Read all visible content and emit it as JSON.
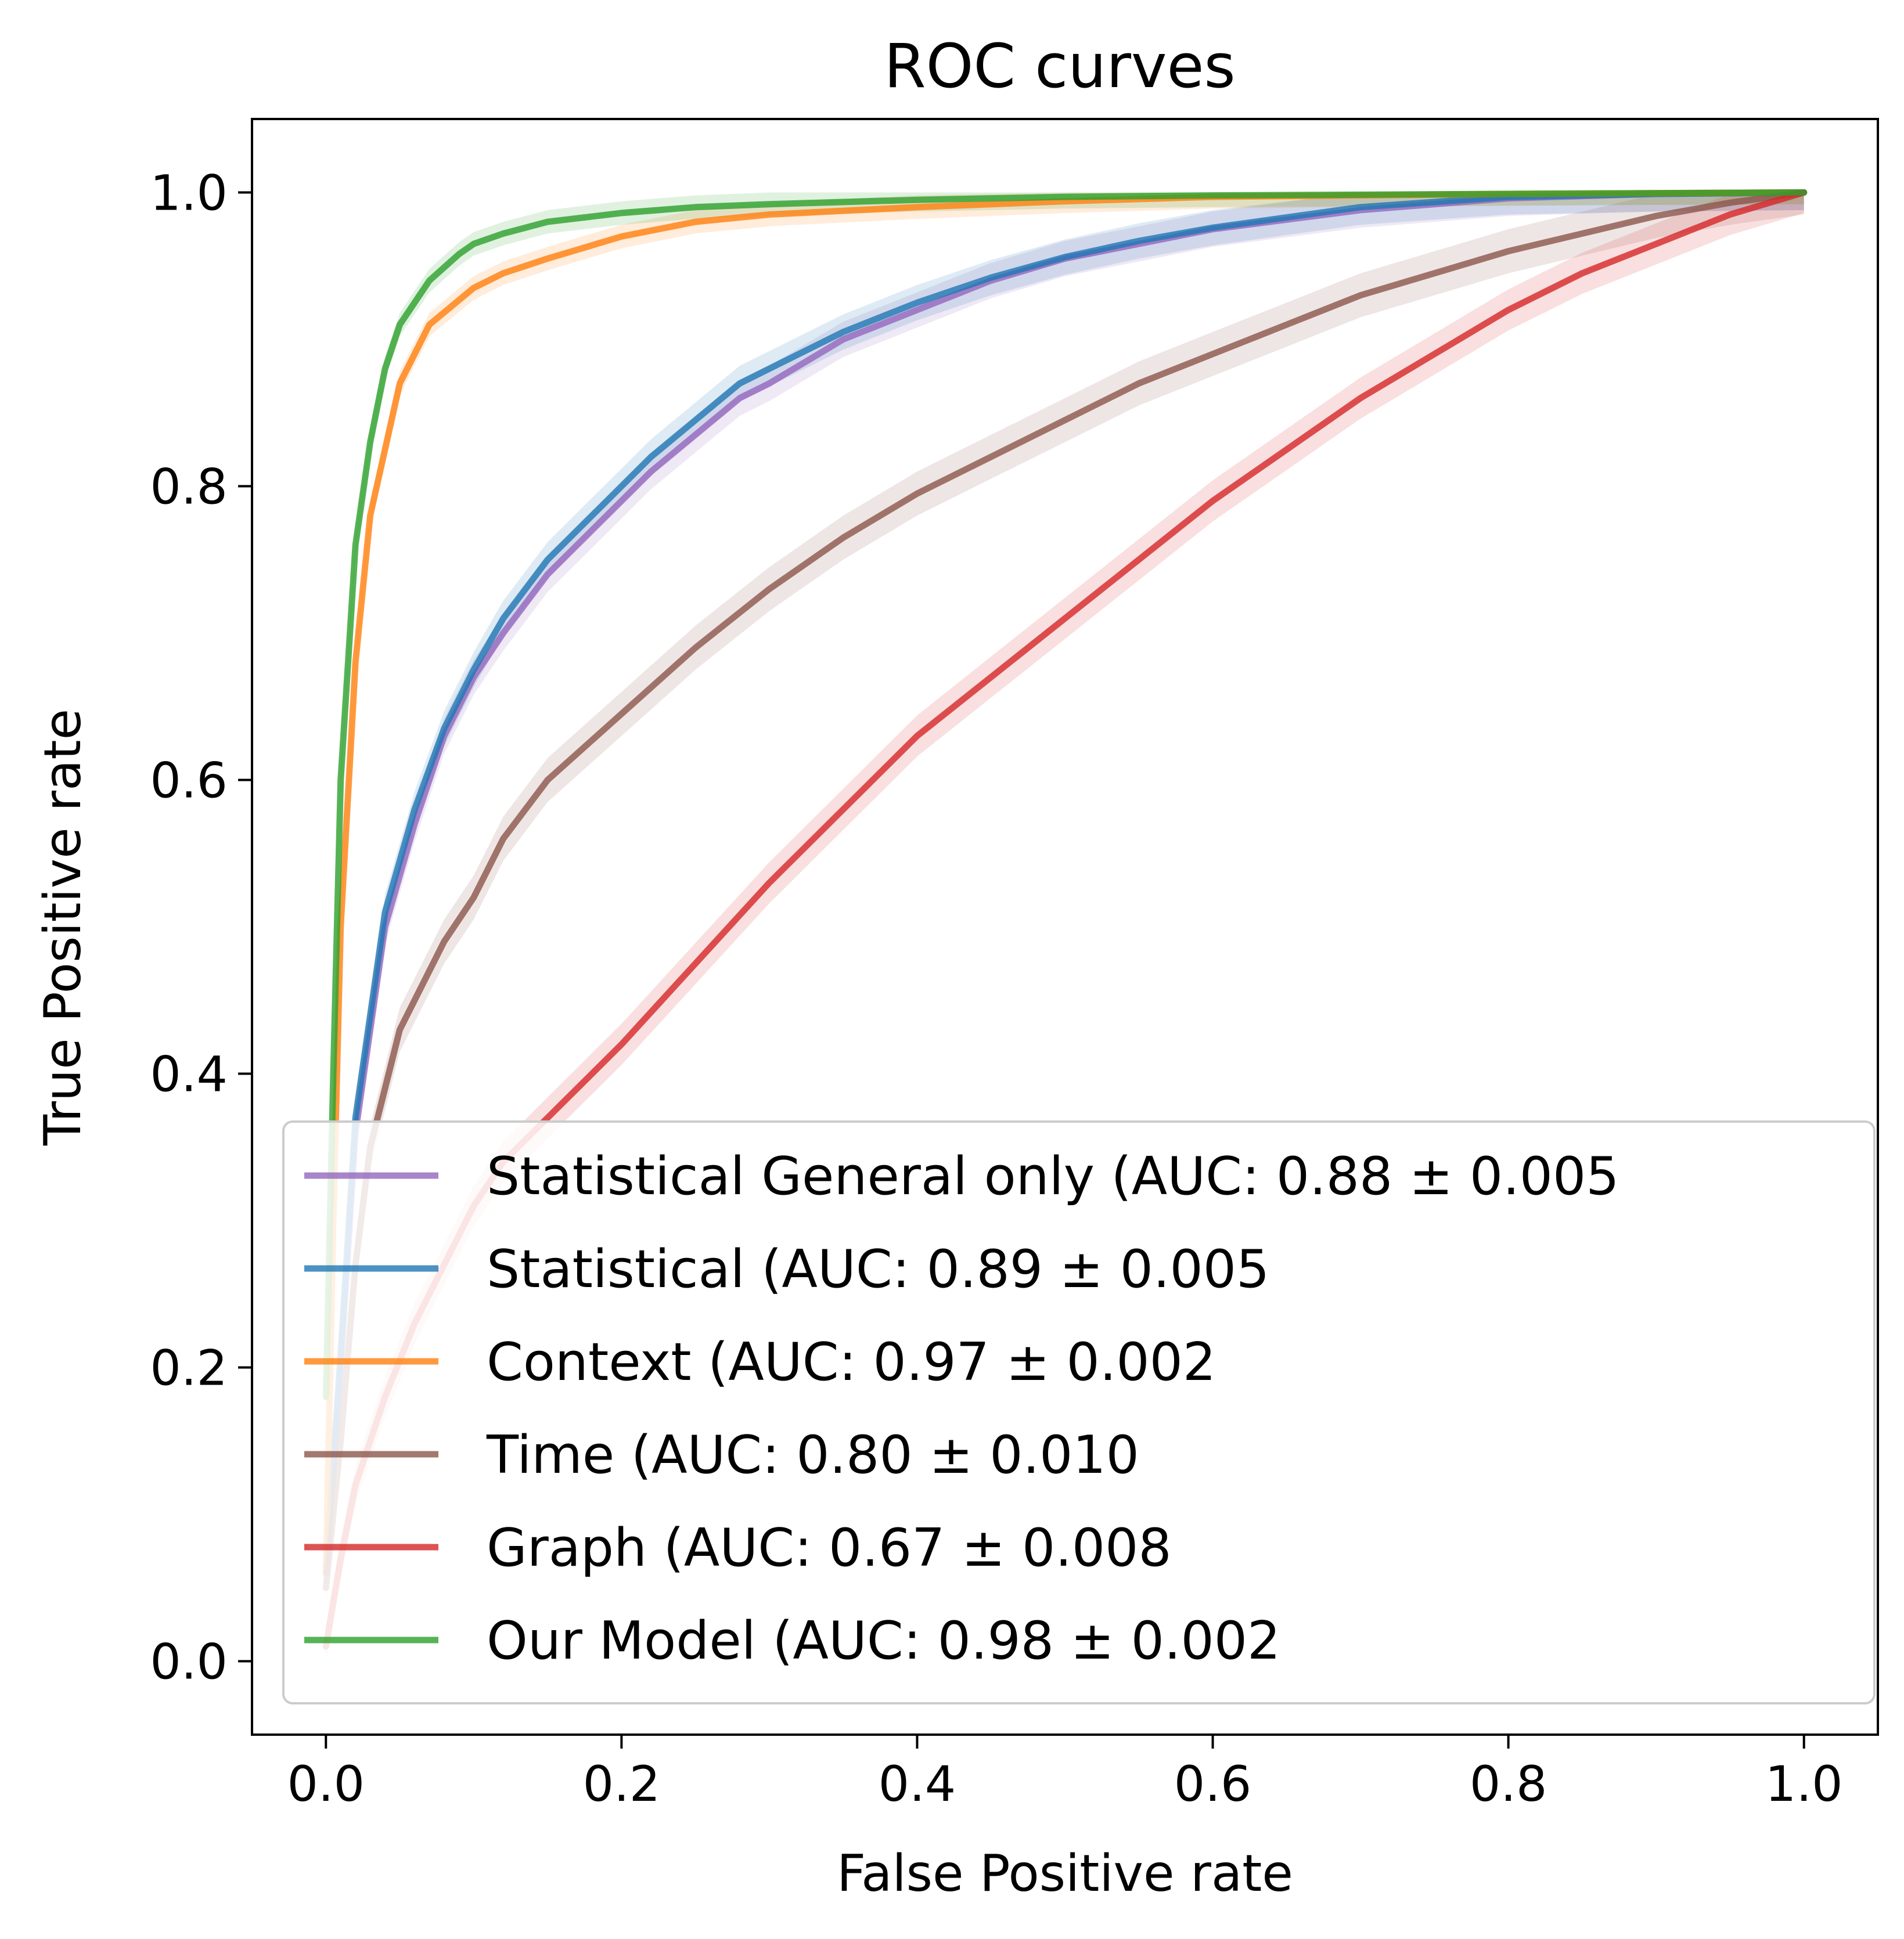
{
  "chart_data": {
    "type": "line",
    "title": "ROC curves",
    "xlabel": "False Positive rate",
    "ylabel": "True Positive rate",
    "xlim": [
      -0.05,
      1.05
    ],
    "ylim": [
      -0.05,
      1.05
    ],
    "x_ticks": [
      0.0,
      0.2,
      0.4,
      0.6,
      0.8,
      1.0
    ],
    "y_ticks": [
      0.0,
      0.2,
      0.4,
      0.6,
      0.8,
      1.0
    ],
    "x_tick_labels": [
      "0.0",
      "0.2",
      "0.4",
      "0.6",
      "0.8",
      "1.0"
    ],
    "y_tick_labels": [
      "0.0",
      "0.2",
      "0.4",
      "0.6",
      "0.8",
      "1.0"
    ],
    "grid": false,
    "legend_position": "lower-right",
    "series": [
      {
        "name": "Statistical General only (AUC: 0.88 ± 0.005",
        "color": "#9467bd",
        "band": 0.012,
        "points": [
          [
            0,
            0.06
          ],
          [
            0.01,
            0.2
          ],
          [
            0.02,
            0.36
          ],
          [
            0.04,
            0.5
          ],
          [
            0.06,
            0.57
          ],
          [
            0.08,
            0.63
          ],
          [
            0.1,
            0.67
          ],
          [
            0.12,
            0.7
          ],
          [
            0.15,
            0.74
          ],
          [
            0.18,
            0.77
          ],
          [
            0.2,
            0.79
          ],
          [
            0.22,
            0.81
          ],
          [
            0.25,
            0.835
          ],
          [
            0.28,
            0.86
          ],
          [
            0.3,
            0.87
          ],
          [
            0.35,
            0.9
          ],
          [
            0.4,
            0.92
          ],
          [
            0.45,
            0.94
          ],
          [
            0.5,
            0.955
          ],
          [
            0.55,
            0.965
          ],
          [
            0.6,
            0.975
          ],
          [
            0.7,
            0.988
          ],
          [
            0.8,
            0.996
          ],
          [
            0.9,
            0.999
          ],
          [
            1.0,
            1.0
          ]
        ]
      },
      {
        "name": "Statistical (AUC: 0.89 ± 0.005",
        "color": "#1f77b4",
        "band": 0.012,
        "points": [
          [
            0,
            0.06
          ],
          [
            0.01,
            0.21
          ],
          [
            0.02,
            0.37
          ],
          [
            0.04,
            0.51
          ],
          [
            0.06,
            0.58
          ],
          [
            0.08,
            0.635
          ],
          [
            0.1,
            0.675
          ],
          [
            0.12,
            0.71
          ],
          [
            0.15,
            0.75
          ],
          [
            0.18,
            0.78
          ],
          [
            0.2,
            0.8
          ],
          [
            0.22,
            0.82
          ],
          [
            0.25,
            0.845
          ],
          [
            0.28,
            0.87
          ],
          [
            0.3,
            0.88
          ],
          [
            0.35,
            0.905
          ],
          [
            0.4,
            0.925
          ],
          [
            0.45,
            0.942
          ],
          [
            0.5,
            0.956
          ],
          [
            0.55,
            0.967
          ],
          [
            0.6,
            0.976
          ],
          [
            0.7,
            0.99
          ],
          [
            0.8,
            0.997
          ],
          [
            0.9,
            0.999
          ],
          [
            1.0,
            1.0
          ]
        ]
      },
      {
        "name": "Context  (AUC: 0.97 ± 0.002",
        "color": "#ff7f0e",
        "band": 0.008,
        "points": [
          [
            0,
            0.06
          ],
          [
            0.005,
            0.3
          ],
          [
            0.01,
            0.5
          ],
          [
            0.02,
            0.68
          ],
          [
            0.03,
            0.78
          ],
          [
            0.05,
            0.87
          ],
          [
            0.07,
            0.91
          ],
          [
            0.1,
            0.935
          ],
          [
            0.12,
            0.945
          ],
          [
            0.15,
            0.955
          ],
          [
            0.2,
            0.97
          ],
          [
            0.25,
            0.98
          ],
          [
            0.3,
            0.985
          ],
          [
            0.4,
            0.99
          ],
          [
            0.5,
            0.994
          ],
          [
            0.6,
            0.997
          ],
          [
            0.8,
            0.999
          ],
          [
            1.0,
            1.0
          ]
        ]
      },
      {
        "name": "Time (AUC: 0.80 ± 0.010",
        "color": "#8c564b",
        "band": 0.015,
        "points": [
          [
            0,
            0.05
          ],
          [
            0.01,
            0.15
          ],
          [
            0.02,
            0.27
          ],
          [
            0.03,
            0.35
          ],
          [
            0.05,
            0.43
          ],
          [
            0.08,
            0.49
          ],
          [
            0.1,
            0.52
          ],
          [
            0.12,
            0.56
          ],
          [
            0.15,
            0.6
          ],
          [
            0.2,
            0.645
          ],
          [
            0.25,
            0.69
          ],
          [
            0.3,
            0.73
          ],
          [
            0.35,
            0.765
          ],
          [
            0.4,
            0.795
          ],
          [
            0.45,
            0.82
          ],
          [
            0.5,
            0.845
          ],
          [
            0.55,
            0.87
          ],
          [
            0.6,
            0.89
          ],
          [
            0.65,
            0.91
          ],
          [
            0.7,
            0.93
          ],
          [
            0.75,
            0.945
          ],
          [
            0.8,
            0.96
          ],
          [
            0.85,
            0.972
          ],
          [
            0.9,
            0.984
          ],
          [
            0.95,
            0.993
          ],
          [
            1.0,
            1.0
          ]
        ]
      },
      {
        "name": "Graph (AUC: 0.67 ± 0.008",
        "color": "#d62728",
        "band": 0.014,
        "points": [
          [
            0,
            0.01
          ],
          [
            0.01,
            0.07
          ],
          [
            0.02,
            0.12
          ],
          [
            0.04,
            0.18
          ],
          [
            0.06,
            0.23
          ],
          [
            0.08,
            0.27
          ],
          [
            0.1,
            0.31
          ],
          [
            0.12,
            0.34
          ],
          [
            0.15,
            0.37
          ],
          [
            0.2,
            0.42
          ],
          [
            0.25,
            0.475
          ],
          [
            0.3,
            0.53
          ],
          [
            0.35,
            0.58
          ],
          [
            0.4,
            0.63
          ],
          [
            0.45,
            0.67
          ],
          [
            0.5,
            0.71
          ],
          [
            0.55,
            0.75
          ],
          [
            0.6,
            0.79
          ],
          [
            0.65,
            0.825
          ],
          [
            0.7,
            0.86
          ],
          [
            0.75,
            0.89
          ],
          [
            0.8,
            0.92
          ],
          [
            0.85,
            0.945
          ],
          [
            0.9,
            0.965
          ],
          [
            0.95,
            0.985
          ],
          [
            1.0,
            1.0
          ]
        ]
      },
      {
        "name": "Our Model (AUC: 0.98 ± 0.002",
        "color": "#2ca02c",
        "band": 0.008,
        "points": [
          [
            0,
            0.18
          ],
          [
            0.005,
            0.4
          ],
          [
            0.01,
            0.6
          ],
          [
            0.02,
            0.76
          ],
          [
            0.03,
            0.83
          ],
          [
            0.04,
            0.88
          ],
          [
            0.05,
            0.91
          ],
          [
            0.07,
            0.94
          ],
          [
            0.09,
            0.958
          ],
          [
            0.1,
            0.965
          ],
          [
            0.12,
            0.972
          ],
          [
            0.15,
            0.98
          ],
          [
            0.2,
            0.986
          ],
          [
            0.25,
            0.99
          ],
          [
            0.3,
            0.992
          ],
          [
            0.4,
            0.995
          ],
          [
            0.5,
            0.997
          ],
          [
            0.6,
            0.998
          ],
          [
            0.8,
            0.999
          ],
          [
            1.0,
            1.0
          ]
        ]
      }
    ]
  }
}
